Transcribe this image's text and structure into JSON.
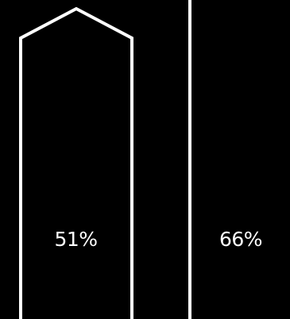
{
  "colors": {
    "background": "#000000",
    "foreground": "#ffffff"
  },
  "panels": [
    {
      "percent_label": "51%",
      "percent": 51,
      "shape": "pentagon-outline"
    },
    {
      "percent_label": "66%",
      "percent": 66,
      "shape": "plain"
    }
  ]
}
